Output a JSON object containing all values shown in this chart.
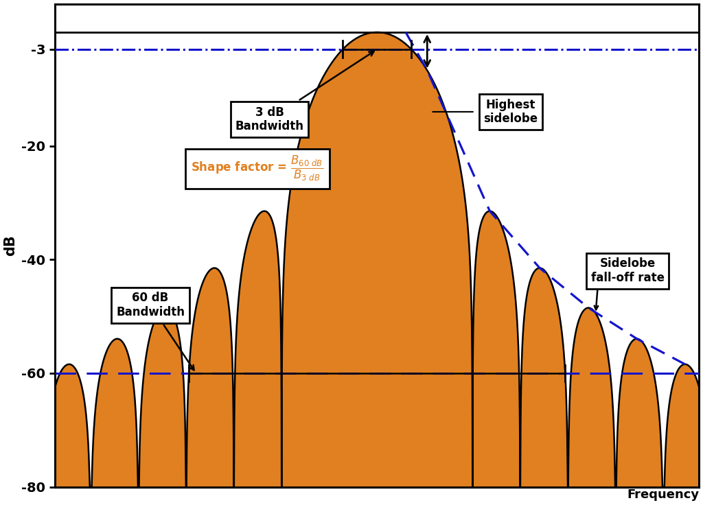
{
  "fill_color": "#E08020",
  "line_color": "#000000",
  "dash_color": "#1515CC",
  "bg_color": "#FFFFFF",
  "ylabel": "dB",
  "xlabel": "Frequency",
  "ylim": [
    -80,
    5
  ],
  "xlim": [
    -13.5,
    13.5
  ],
  "yticks": [
    -80,
    -60,
    -40,
    -20,
    -3
  ],
  "ytick_labels": [
    "-80",
    "-60",
    "-40",
    "-20",
    "-3"
  ],
  "db3": -3,
  "db60": -60,
  "annotation_3db": "3 dB\nBandwidth",
  "annotation_60db": "60 dB\nBandwidth",
  "annotation_shape": "Shape factor = ",
  "annotation_highest": "Highest\nsidelobe",
  "annotation_falloff": "Sidelobe\nfall-off rate",
  "lobe_scale": 2.0,
  "num_lobes": 14
}
